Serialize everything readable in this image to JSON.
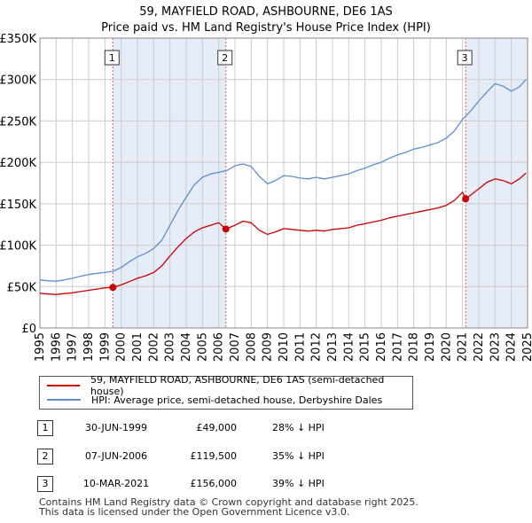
{
  "title_line1": "59, MAYFIELD ROAD, ASHBOURNE, DE6 1AS",
  "title_line2": "Price paid vs. HM Land Registry's House Price Index (HPI)",
  "chart_data": {
    "type": "line",
    "title": "59, MAYFIELD ROAD, ASHBOURNE, DE6 1AS — Price paid vs. HM Land Registry's House Price Index (HPI)",
    "xlabel": "",
    "ylabel": "",
    "xlim": [
      1995,
      2025
    ],
    "ylim": [
      0,
      350000
    ],
    "x_ticks": [
      1995,
      1996,
      1997,
      1998,
      1999,
      2000,
      2001,
      2002,
      2003,
      2004,
      2005,
      2006,
      2007,
      2008,
      2009,
      2010,
      2011,
      2012,
      2013,
      2014,
      2015,
      2016,
      2017,
      2018,
      2019,
      2020,
      2021,
      2022,
      2023,
      2024,
      2025
    ],
    "y_ticks": [
      {
        "value": 0,
        "label": "£0"
      },
      {
        "value": 50000,
        "label": "£50K"
      },
      {
        "value": 100000,
        "label": "£100K"
      },
      {
        "value": 150000,
        "label": "£150K"
      },
      {
        "value": 200000,
        "label": "£200K"
      },
      {
        "value": 250000,
        "label": "£250K"
      },
      {
        "value": 300000,
        "label": "£300K"
      },
      {
        "value": 350000,
        "label": "£350K"
      }
    ],
    "grid": true,
    "series": [
      {
        "name": "59, MAYFIELD ROAD, ASHBOURNE, DE6 1AS (semi-detached house)",
        "color": "#cc0000",
        "points": [
          [
            1995.0,
            42000
          ],
          [
            1995.5,
            41000
          ],
          [
            1996.0,
            40500
          ],
          [
            1996.5,
            41500
          ],
          [
            1997.0,
            42500
          ],
          [
            1997.5,
            44000
          ],
          [
            1998.0,
            45500
          ],
          [
            1998.5,
            47000
          ],
          [
            1999.0,
            48500
          ],
          [
            1999.49,
            49000
          ],
          [
            2000.0,
            52000
          ],
          [
            2000.5,
            56000
          ],
          [
            2001.0,
            60000
          ],
          [
            2001.5,
            63000
          ],
          [
            2002.0,
            67000
          ],
          [
            2002.5,
            75000
          ],
          [
            2003.0,
            87000
          ],
          [
            2003.5,
            98000
          ],
          [
            2004.0,
            108000
          ],
          [
            2004.5,
            116000
          ],
          [
            2005.0,
            121000
          ],
          [
            2005.5,
            124000
          ],
          [
            2006.0,
            127000
          ],
          [
            2006.44,
            119500
          ],
          [
            2007.0,
            124000
          ],
          [
            2007.5,
            129000
          ],
          [
            2008.0,
            127000
          ],
          [
            2008.5,
            118000
          ],
          [
            2009.0,
            113000
          ],
          [
            2009.5,
            116000
          ],
          [
            2010.0,
            120000
          ],
          [
            2010.5,
            119000
          ],
          [
            2011.0,
            118000
          ],
          [
            2011.5,
            117000
          ],
          [
            2012.0,
            118000
          ],
          [
            2012.5,
            117000
          ],
          [
            2013.0,
            119000
          ],
          [
            2013.5,
            120000
          ],
          [
            2014.0,
            121000
          ],
          [
            2014.5,
            124000
          ],
          [
            2015.0,
            126000
          ],
          [
            2015.5,
            128000
          ],
          [
            2016.0,
            130000
          ],
          [
            2016.5,
            133000
          ],
          [
            2017.0,
            135000
          ],
          [
            2017.5,
            137000
          ],
          [
            2018.0,
            139000
          ],
          [
            2018.5,
            141000
          ],
          [
            2019.0,
            143000
          ],
          [
            2019.5,
            145000
          ],
          [
            2020.0,
            148000
          ],
          [
            2020.5,
            154000
          ],
          [
            2021.0,
            164000
          ],
          [
            2021.19,
            156000
          ],
          [
            2021.6,
            162000
          ],
          [
            2022.0,
            168000
          ],
          [
            2022.5,
            176000
          ],
          [
            2023.0,
            180000
          ],
          [
            2023.5,
            178000
          ],
          [
            2024.0,
            174000
          ],
          [
            2024.5,
            180000
          ],
          [
            2024.9,
            187000
          ]
        ]
      },
      {
        "name": "HPI: Average price, semi-detached house, Derbyshire Dales",
        "color": "#5b8fd0",
        "points": [
          [
            1995.0,
            58000
          ],
          [
            1995.5,
            57000
          ],
          [
            1996.0,
            56500
          ],
          [
            1996.5,
            58000
          ],
          [
            1997.0,
            60000
          ],
          [
            1997.5,
            62500
          ],
          [
            1998.0,
            64500
          ],
          [
            1998.5,
            66000
          ],
          [
            1999.0,
            67000
          ],
          [
            1999.5,
            68500
          ],
          [
            2000.0,
            73000
          ],
          [
            2000.5,
            80000
          ],
          [
            2001.0,
            86000
          ],
          [
            2001.5,
            90000
          ],
          [
            2002.0,
            96000
          ],
          [
            2002.5,
            106000
          ],
          [
            2003.0,
            124000
          ],
          [
            2003.5,
            142000
          ],
          [
            2004.0,
            158000
          ],
          [
            2004.5,
            173000
          ],
          [
            2005.0,
            182000
          ],
          [
            2005.5,
            186000
          ],
          [
            2006.0,
            188000
          ],
          [
            2006.5,
            190000
          ],
          [
            2007.0,
            196000
          ],
          [
            2007.5,
            198000
          ],
          [
            2008.0,
            195000
          ],
          [
            2008.5,
            183000
          ],
          [
            2009.0,
            174000
          ],
          [
            2009.5,
            178000
          ],
          [
            2010.0,
            184000
          ],
          [
            2010.5,
            183000
          ],
          [
            2011.0,
            181000
          ],
          [
            2011.5,
            180000
          ],
          [
            2012.0,
            182000
          ],
          [
            2012.5,
            180000
          ],
          [
            2013.0,
            182000
          ],
          [
            2013.5,
            184000
          ],
          [
            2014.0,
            186000
          ],
          [
            2014.5,
            190000
          ],
          [
            2015.0,
            193000
          ],
          [
            2015.5,
            197000
          ],
          [
            2016.0,
            200000
          ],
          [
            2016.5,
            205000
          ],
          [
            2017.0,
            209000
          ],
          [
            2017.5,
            212000
          ],
          [
            2018.0,
            216000
          ],
          [
            2018.5,
            218000
          ],
          [
            2019.0,
            221000
          ],
          [
            2019.5,
            224000
          ],
          [
            2020.0,
            229000
          ],
          [
            2020.5,
            238000
          ],
          [
            2021.0,
            252000
          ],
          [
            2021.5,
            262000
          ],
          [
            2022.0,
            274000
          ],
          [
            2022.5,
            285000
          ],
          [
            2023.0,
            295000
          ],
          [
            2023.5,
            292000
          ],
          [
            2024.0,
            286000
          ],
          [
            2024.5,
            291000
          ],
          [
            2024.9,
            300000
          ]
        ]
      }
    ],
    "sales": [
      {
        "marker": "1",
        "x": 1999.49,
        "price": 49000
      },
      {
        "marker": "2",
        "x": 2006.44,
        "price": 119500
      },
      {
        "marker": "3",
        "x": 2021.19,
        "price": 156000
      }
    ],
    "shaded_periods": [
      [
        1999.49,
        2006.44
      ],
      [
        2021.19,
        2025
      ]
    ]
  },
  "legend": {
    "property_label": "59, MAYFIELD ROAD, ASHBOURNE, DE6 1AS (semi-detached house)",
    "hpi_label": "HPI: Average price, semi-detached house, Derbyshire Dales",
    "property_color": "#cc0000",
    "hpi_color": "#5b8fd0"
  },
  "sales_table": [
    {
      "marker": "1",
      "date": "30-JUN-1999",
      "price": "£49,000",
      "hpi": "28% ↓ HPI"
    },
    {
      "marker": "2",
      "date": "07-JUN-2006",
      "price": "£119,500",
      "hpi": "35% ↓ HPI"
    },
    {
      "marker": "3",
      "date": "10-MAR-2021",
      "price": "£156,000",
      "hpi": "39% ↓ HPI"
    }
  ],
  "footer": {
    "line1": "Contains HM Land Registry data © Crown copyright and database right 2025.",
    "line2": "This data is licensed under the Open Government Licence v3.0."
  }
}
